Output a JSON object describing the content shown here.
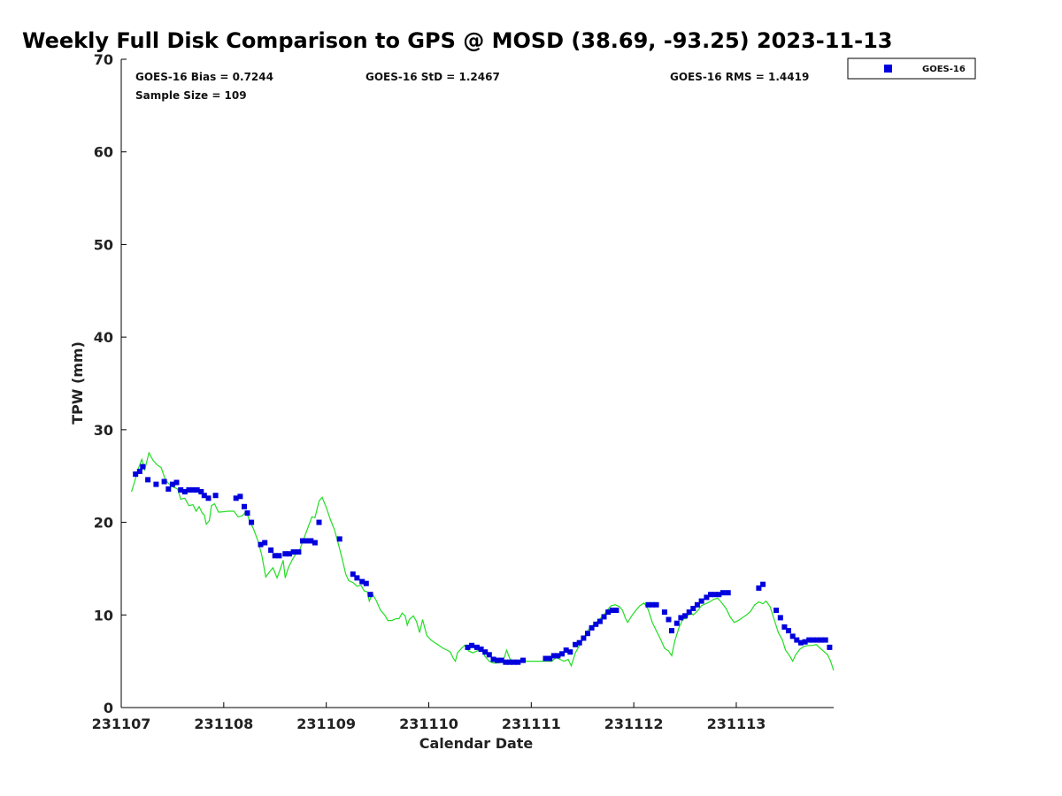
{
  "chart_data": {
    "type": "scatter",
    "title": "Weekly Full Disk Comparison to GPS @ MOSD (38.69, -93.25) 2023-11-13",
    "xlabel": "Calendar Date",
    "ylabel": "TPW (mm)",
    "xlim": [
      0,
      6.95
    ],
    "ylim": [
      0,
      70
    ],
    "x_ticks": [
      {
        "value": 0,
        "label": "231107"
      },
      {
        "value": 1,
        "label": "231108"
      },
      {
        "value": 2,
        "label": "231109"
      },
      {
        "value": 3,
        "label": "231110"
      },
      {
        "value": 4,
        "label": "231111"
      },
      {
        "value": 5,
        "label": "231112"
      },
      {
        "value": 6,
        "label": "231113"
      }
    ],
    "y_ticks": [
      {
        "value": 0,
        "label": "0"
      },
      {
        "value": 10,
        "label": "10"
      },
      {
        "value": 20,
        "label": "20"
      },
      {
        "value": 30,
        "label": "30"
      },
      {
        "value": 40,
        "label": "40"
      },
      {
        "value": 50,
        "label": "50"
      },
      {
        "value": 60,
        "label": "60"
      },
      {
        "value": 70,
        "label": "70"
      }
    ],
    "stats": {
      "bias": "GOES-16 Bias = 0.7244",
      "std": "GOES-16 StD = 1.2467",
      "rms": "GOES-16 RMS = 1.4419",
      "sample": "Sample Size = 109"
    },
    "legend": {
      "position": "top-right",
      "entries": [
        {
          "label": "GOES-16",
          "color": "#0000dd",
          "marker": "square"
        }
      ]
    },
    "series": [
      {
        "name": "GOES-16",
        "kind": "scatter",
        "color": "#0000dd",
        "points": [
          [
            0.14,
            25.2
          ],
          [
            0.18,
            25.5
          ],
          [
            0.21,
            26.0
          ],
          [
            0.26,
            24.6
          ],
          [
            0.34,
            24.1
          ],
          [
            0.42,
            24.4
          ],
          [
            0.46,
            23.6
          ],
          [
            0.5,
            24.1
          ],
          [
            0.54,
            24.3
          ],
          [
            0.58,
            23.5
          ],
          [
            0.62,
            23.3
          ],
          [
            0.66,
            23.5
          ],
          [
            0.7,
            23.5
          ],
          [
            0.74,
            23.5
          ],
          [
            0.78,
            23.3
          ],
          [
            0.81,
            22.9
          ],
          [
            0.85,
            22.6
          ],
          [
            0.92,
            22.9
          ],
          [
            1.12,
            22.6
          ],
          [
            1.16,
            22.8
          ],
          [
            1.2,
            21.7
          ],
          [
            1.23,
            21.0
          ],
          [
            1.27,
            20.0
          ],
          [
            1.36,
            17.6
          ],
          [
            1.4,
            17.8
          ],
          [
            1.46,
            17.0
          ],
          [
            1.5,
            16.4
          ],
          [
            1.54,
            16.4
          ],
          [
            1.6,
            16.6
          ],
          [
            1.64,
            16.6
          ],
          [
            1.68,
            16.8
          ],
          [
            1.73,
            16.8
          ],
          [
            1.77,
            18.0
          ],
          [
            1.81,
            18.0
          ],
          [
            1.85,
            18.0
          ],
          [
            1.89,
            17.8
          ],
          [
            1.93,
            20.0
          ],
          [
            2.13,
            18.2
          ],
          [
            2.26,
            14.4
          ],
          [
            2.3,
            14.0
          ],
          [
            2.35,
            13.6
          ],
          [
            2.39,
            13.4
          ],
          [
            2.43,
            12.2
          ],
          [
            3.38,
            6.5
          ],
          [
            3.42,
            6.7
          ],
          [
            3.47,
            6.5
          ],
          [
            3.51,
            6.3
          ],
          [
            3.55,
            6.0
          ],
          [
            3.59,
            5.7
          ],
          [
            3.63,
            5.2
          ],
          [
            3.67,
            5.1
          ],
          [
            3.71,
            5.1
          ],
          [
            3.75,
            4.9
          ],
          [
            3.79,
            4.9
          ],
          [
            3.83,
            4.9
          ],
          [
            3.87,
            4.9
          ],
          [
            3.92,
            5.1
          ],
          [
            4.14,
            5.3
          ],
          [
            4.18,
            5.3
          ],
          [
            4.22,
            5.6
          ],
          [
            4.26,
            5.6
          ],
          [
            4.3,
            5.8
          ],
          [
            4.34,
            6.2
          ],
          [
            4.38,
            6.0
          ],
          [
            4.43,
            6.8
          ],
          [
            4.47,
            7.0
          ],
          [
            4.51,
            7.5
          ],
          [
            4.55,
            8.0
          ],
          [
            4.59,
            8.6
          ],
          [
            4.63,
            9.0
          ],
          [
            4.67,
            9.3
          ],
          [
            4.71,
            9.8
          ],
          [
            4.75,
            10.3
          ],
          [
            4.79,
            10.5
          ],
          [
            4.83,
            10.5
          ],
          [
            5.14,
            11.1
          ],
          [
            5.18,
            11.1
          ],
          [
            5.22,
            11.1
          ],
          [
            5.3,
            10.3
          ],
          [
            5.34,
            9.5
          ],
          [
            5.37,
            8.3
          ],
          [
            5.42,
            9.1
          ],
          [
            5.46,
            9.7
          ],
          [
            5.5,
            9.9
          ],
          [
            5.54,
            10.3
          ],
          [
            5.58,
            10.7
          ],
          [
            5.62,
            11.1
          ],
          [
            5.66,
            11.5
          ],
          [
            5.71,
            11.9
          ],
          [
            5.75,
            12.2
          ],
          [
            5.79,
            12.2
          ],
          [
            5.83,
            12.2
          ],
          [
            5.87,
            12.4
          ],
          [
            5.92,
            12.4
          ],
          [
            6.22,
            12.9
          ],
          [
            6.26,
            13.3
          ],
          [
            6.39,
            10.5
          ],
          [
            6.43,
            9.7
          ],
          [
            6.47,
            8.7
          ],
          [
            6.51,
            8.3
          ],
          [
            6.55,
            7.7
          ],
          [
            6.59,
            7.3
          ],
          [
            6.63,
            7.0
          ],
          [
            6.67,
            7.1
          ],
          [
            6.71,
            7.3
          ],
          [
            6.75,
            7.3
          ],
          [
            6.79,
            7.3
          ],
          [
            6.83,
            7.3
          ],
          [
            6.87,
            7.3
          ],
          [
            6.91,
            6.5
          ]
        ]
      },
      {
        "name": "GPS",
        "kind": "line",
        "color": "#22dd22",
        "points": [
          [
            0.1,
            23.3
          ],
          [
            0.13,
            24.4
          ],
          [
            0.17,
            25.9
          ],
          [
            0.2,
            26.8
          ],
          [
            0.23,
            25.7
          ],
          [
            0.27,
            27.5
          ],
          [
            0.31,
            26.7
          ],
          [
            0.35,
            26.2
          ],
          [
            0.39,
            25.9
          ],
          [
            0.43,
            24.6
          ],
          [
            0.47,
            24.1
          ],
          [
            0.51,
            23.8
          ],
          [
            0.55,
            23.6
          ],
          [
            0.58,
            22.5
          ],
          [
            0.62,
            22.6
          ],
          [
            0.66,
            21.8
          ],
          [
            0.7,
            21.9
          ],
          [
            0.73,
            21.2
          ],
          [
            0.76,
            21.7
          ],
          [
            0.79,
            21.0
          ],
          [
            0.81,
            20.8
          ],
          [
            0.83,
            19.8
          ],
          [
            0.86,
            20.2
          ],
          [
            0.88,
            21.8
          ],
          [
            0.91,
            22.0
          ],
          [
            0.95,
            21.1
          ],
          [
            1.05,
            21.2
          ],
          [
            1.1,
            21.2
          ],
          [
            1.14,
            20.6
          ],
          [
            1.18,
            20.7
          ],
          [
            1.22,
            21.2
          ],
          [
            1.25,
            20.2
          ],
          [
            1.29,
            19.3
          ],
          [
            1.33,
            18.1
          ],
          [
            1.37,
            16.5
          ],
          [
            1.41,
            14.1
          ],
          [
            1.45,
            14.7
          ],
          [
            1.48,
            15.1
          ],
          [
            1.52,
            14.0
          ],
          [
            1.55,
            14.9
          ],
          [
            1.58,
            15.9
          ],
          [
            1.6,
            14.0
          ],
          [
            1.63,
            15.1
          ],
          [
            1.67,
            16.0
          ],
          [
            1.71,
            16.7
          ],
          [
            1.74,
            17.0
          ],
          [
            1.78,
            18.2
          ],
          [
            1.82,
            19.4
          ],
          [
            1.86,
            20.6
          ],
          [
            1.89,
            20.5
          ],
          [
            1.93,
            22.3
          ],
          [
            1.96,
            22.7
          ],
          [
            2.0,
            21.6
          ],
          [
            2.04,
            20.3
          ],
          [
            2.08,
            19.2
          ],
          [
            2.11,
            18.0
          ],
          [
            2.15,
            16.3
          ],
          [
            2.19,
            14.4
          ],
          [
            2.22,
            13.7
          ],
          [
            2.26,
            13.5
          ],
          [
            2.3,
            13.1
          ],
          [
            2.34,
            13.2
          ],
          [
            2.37,
            12.6
          ],
          [
            2.4,
            12.5
          ],
          [
            2.42,
            11.5
          ],
          [
            2.45,
            12.3
          ],
          [
            2.49,
            11.5
          ],
          [
            2.53,
            10.5
          ],
          [
            2.57,
            10.0
          ],
          [
            2.6,
            9.4
          ],
          [
            2.64,
            9.4
          ],
          [
            2.68,
            9.6
          ],
          [
            2.71,
            9.6
          ],
          [
            2.74,
            10.2
          ],
          [
            2.77,
            9.9
          ],
          [
            2.79,
            8.9
          ],
          [
            2.81,
            9.5
          ],
          [
            2.85,
            9.9
          ],
          [
            2.88,
            9.3
          ],
          [
            2.91,
            8.1
          ],
          [
            2.94,
            9.5
          ],
          [
            2.98,
            7.8
          ],
          [
            3.02,
            7.3
          ],
          [
            3.06,
            7.0
          ],
          [
            3.1,
            6.7
          ],
          [
            3.14,
            6.4
          ],
          [
            3.18,
            6.2
          ],
          [
            3.21,
            6.0
          ],
          [
            3.24,
            5.3
          ],
          [
            3.26,
            5.0
          ],
          [
            3.28,
            5.9
          ],
          [
            3.32,
            6.4
          ],
          [
            3.35,
            6.7
          ],
          [
            3.39,
            6.1
          ],
          [
            3.43,
            5.9
          ],
          [
            3.47,
            6.1
          ],
          [
            3.51,
            6.3
          ],
          [
            3.55,
            5.5
          ],
          [
            3.59,
            5.0
          ],
          [
            3.63,
            4.8
          ],
          [
            3.67,
            4.8
          ],
          [
            3.71,
            4.9
          ],
          [
            3.74,
            5.5
          ],
          [
            3.76,
            6.2
          ],
          [
            3.79,
            5.3
          ],
          [
            3.83,
            4.8
          ],
          [
            3.87,
            4.7
          ],
          [
            3.91,
            5.2
          ],
          [
            3.95,
            5.0
          ],
          [
            4.0,
            5.0
          ],
          [
            4.08,
            5.0
          ],
          [
            4.16,
            5.0
          ],
          [
            4.2,
            5.0
          ],
          [
            4.24,
            5.4
          ],
          [
            4.28,
            5.2
          ],
          [
            4.32,
            5.0
          ],
          [
            4.36,
            5.2
          ],
          [
            4.39,
            4.5
          ],
          [
            4.43,
            5.9
          ],
          [
            4.47,
            6.7
          ],
          [
            4.51,
            7.5
          ],
          [
            4.55,
            8.3
          ],
          [
            4.59,
            8.8
          ],
          [
            4.63,
            9.1
          ],
          [
            4.67,
            9.6
          ],
          [
            4.71,
            10.0
          ],
          [
            4.74,
            10.5
          ],
          [
            4.78,
            11.0
          ],
          [
            4.82,
            11.1
          ],
          [
            4.86,
            10.9
          ],
          [
            4.89,
            10.5
          ],
          [
            4.92,
            9.6
          ],
          [
            4.94,
            9.2
          ],
          [
            4.98,
            9.9
          ],
          [
            5.02,
            10.5
          ],
          [
            5.06,
            11.0
          ],
          [
            5.1,
            11.3
          ],
          [
            5.14,
            10.6
          ],
          [
            5.18,
            9.2
          ],
          [
            5.22,
            8.3
          ],
          [
            5.26,
            7.4
          ],
          [
            5.3,
            6.4
          ],
          [
            5.34,
            6.1
          ],
          [
            5.37,
            5.6
          ],
          [
            5.4,
            7.2
          ],
          [
            5.44,
            8.6
          ],
          [
            5.48,
            9.6
          ],
          [
            5.51,
            9.6
          ],
          [
            5.55,
            10.3
          ],
          [
            5.58,
            10.0
          ],
          [
            5.62,
            10.4
          ],
          [
            5.66,
            11.0
          ],
          [
            5.7,
            11.2
          ],
          [
            5.74,
            11.4
          ],
          [
            5.78,
            11.7
          ],
          [
            5.82,
            11.8
          ],
          [
            5.86,
            11.3
          ],
          [
            5.9,
            10.7
          ],
          [
            5.94,
            9.8
          ],
          [
            5.98,
            9.2
          ],
          [
            6.02,
            9.4
          ],
          [
            6.06,
            9.7
          ],
          [
            6.1,
            10.0
          ],
          [
            6.14,
            10.4
          ],
          [
            6.18,
            11.1
          ],
          [
            6.22,
            11.4
          ],
          [
            6.26,
            11.2
          ],
          [
            6.29,
            11.5
          ],
          [
            6.33,
            10.9
          ],
          [
            6.37,
            9.5
          ],
          [
            6.41,
            8.1
          ],
          [
            6.45,
            7.3
          ],
          [
            6.48,
            6.2
          ],
          [
            6.52,
            5.6
          ],
          [
            6.55,
            5.0
          ],
          [
            6.58,
            5.7
          ],
          [
            6.62,
            6.3
          ],
          [
            6.66,
            6.6
          ],
          [
            6.7,
            6.7
          ],
          [
            6.74,
            6.7
          ],
          [
            6.78,
            6.8
          ],
          [
            6.82,
            6.4
          ],
          [
            6.86,
            6.0
          ],
          [
            6.89,
            5.7
          ],
          [
            6.92,
            5.0
          ],
          [
            6.95,
            4.0
          ]
        ]
      }
    ]
  }
}
